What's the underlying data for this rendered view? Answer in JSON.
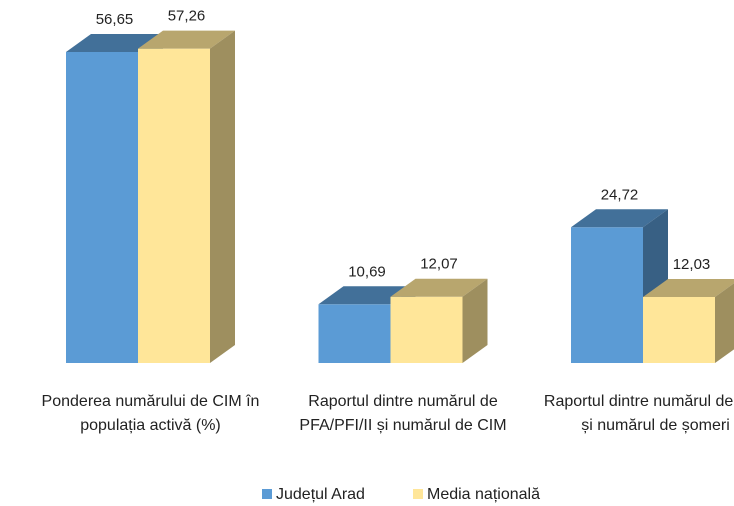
{
  "chart_data": {
    "type": "bar3d",
    "categories": [
      "Ponderea numărului de CIM în populația activă (%)",
      "Raportul dintre numărul de PFA/PFI/II și numărul de CIM",
      "Raportul dintre numărul de CIM și numărul de șomeri"
    ],
    "series": [
      {
        "name": "Județul Arad",
        "color": "#5b9bd5",
        "values": [
          56.65,
          10.69,
          24.72
        ],
        "value_labels": [
          "56,65",
          "10,69",
          "24,72"
        ]
      },
      {
        "name": "Media națională",
        "color": "#ffe699",
        "values": [
          57.26,
          12.07,
          12.03
        ],
        "value_labels": [
          "57,26",
          "12,07",
          "12,03"
        ]
      }
    ],
    "legend": "bottom"
  }
}
